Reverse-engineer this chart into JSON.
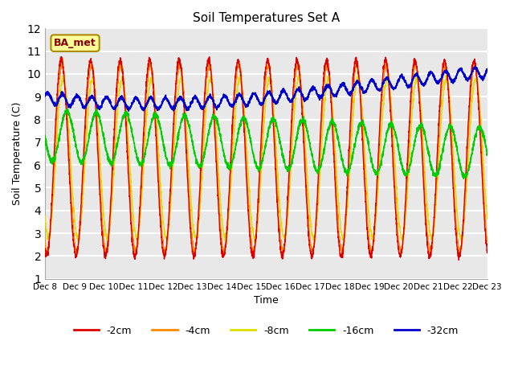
{
  "title": "Soil Temperatures Set A",
  "xlabel": "Time",
  "ylabel": "Soil Temperature (C)",
  "ylim": [
    1.0,
    12.0
  ],
  "yticks": [
    1.0,
    2.0,
    3.0,
    4.0,
    5.0,
    6.0,
    7.0,
    8.0,
    9.0,
    10.0,
    11.0,
    12.0
  ],
  "background_color": "#e8e8e8",
  "grid_color": "#ffffff",
  "series_colors": {
    "-2cm": "#dd0000",
    "-4cm": "#ff8800",
    "-8cm": "#dddd00",
    "-16cm": "#00cc00",
    "-32cm": "#0000cc"
  },
  "annotation_label": "BA_met",
  "start_day": 8,
  "end_day": 23
}
